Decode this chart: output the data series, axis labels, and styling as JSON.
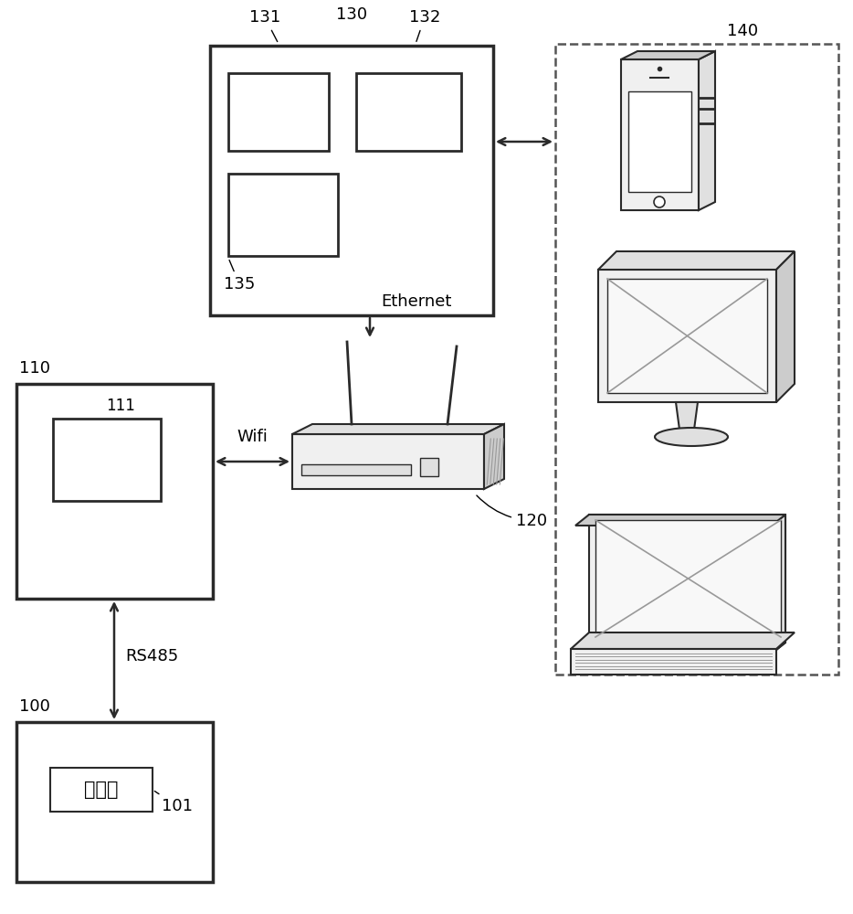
{
  "bg_color": "#ffffff",
  "label_140": "140",
  "label_130": "130",
  "label_131": "131",
  "label_132": "132",
  "label_135": "135",
  "label_120": "120",
  "label_110": "110",
  "label_111": "111",
  "label_100": "100",
  "label_101": "101",
  "label_ethernet": "Ethernet",
  "label_wifi": "Wifi",
  "label_rs485": "RS485",
  "label_controller": "控制器",
  "line_color": "#2a2a2a",
  "dashed_color": "#555555",
  "device_edge": "#2a2a2a",
  "device_fill_light": "#f0f0f0",
  "device_fill_mid": "#e0e0e0",
  "device_fill_dark": "#cccccc",
  "screen_line": "#999999"
}
